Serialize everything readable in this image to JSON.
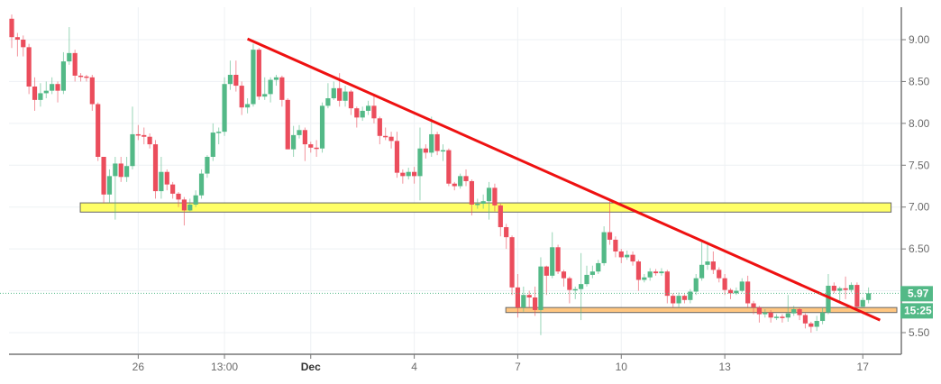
{
  "chart_data": {
    "type": "candlestick",
    "title": "",
    "xlabel": "",
    "ylabel": "",
    "ylim": [
      5.25,
      9.45
    ],
    "grid": true,
    "y_ticks": [
      "5.50",
      "6.00",
      "6.50",
      "7.00",
      "7.50",
      "8.00",
      "8.50",
      "9.00"
    ],
    "y_tick_labels_shown": [
      "5.50",
      "6.50",
      "7.00",
      "7.50",
      "8.00",
      "8.50",
      "9.00"
    ],
    "x_ticks": [
      {
        "label": "26",
        "candle": 22,
        "bold": false
      },
      {
        "label": "13:00",
        "candle": 37,
        "bold": false
      },
      {
        "label": "Dec",
        "candle": 52,
        "bold": true
      },
      {
        "label": "4",
        "candle": 70,
        "bold": false
      },
      {
        "label": "7",
        "candle": 88,
        "bold": false
      },
      {
        "label": "10",
        "candle": 106,
        "bold": false
      },
      {
        "label": "13",
        "candle": 124,
        "bold": false
      },
      {
        "label": "17",
        "candle": 148,
        "bold": false
      }
    ],
    "colors": {
      "up": "#53b987",
      "down": "#eb4d5c",
      "trendline": "#ee1111",
      "resistance_zone": "#ffff66",
      "support_zone": "#ffc680",
      "grid": "#eef1f4",
      "axis": "#777777"
    },
    "ohlc_order": [
      "open",
      "high",
      "low",
      "close"
    ],
    "candles": [
      [
        9.25,
        9.3,
        8.9,
        9.03
      ],
      [
        9.03,
        9.08,
        8.8,
        9.0
      ],
      [
        9.0,
        9.05,
        8.8,
        8.91
      ],
      [
        8.91,
        8.95,
        8.35,
        8.44
      ],
      [
        8.44,
        8.55,
        8.15,
        8.28
      ],
      [
        8.28,
        8.48,
        8.2,
        8.36
      ],
      [
        8.36,
        8.5,
        8.3,
        8.39
      ],
      [
        8.39,
        8.55,
        8.35,
        8.47
      ],
      [
        8.47,
        8.5,
        8.25,
        8.39
      ],
      [
        8.39,
        8.85,
        8.35,
        8.74
      ],
      [
        8.74,
        9.15,
        8.7,
        8.84
      ],
      [
        8.84,
        8.88,
        8.5,
        8.57
      ],
      [
        8.57,
        8.6,
        8.5,
        8.56
      ],
      [
        8.56,
        8.58,
        8.5,
        8.55
      ],
      [
        8.55,
        8.58,
        8.15,
        8.23
      ],
      [
        8.23,
        8.25,
        7.55,
        7.6
      ],
      [
        7.6,
        7.6,
        7.05,
        7.15
      ],
      [
        7.15,
        7.45,
        7.05,
        7.37
      ],
      [
        7.37,
        7.6,
        6.85,
        7.52
      ],
      [
        7.52,
        7.6,
        7.3,
        7.36
      ],
      [
        7.36,
        7.6,
        7.3,
        7.49
      ],
      [
        7.49,
        8.2,
        7.45,
        7.87
      ],
      [
        7.87,
        7.98,
        7.8,
        7.86
      ],
      [
        7.86,
        7.95,
        7.75,
        7.84
      ],
      [
        7.84,
        7.88,
        7.7,
        7.75
      ],
      [
        7.75,
        7.8,
        7.1,
        7.19
      ],
      [
        7.19,
        7.6,
        7.1,
        7.42
      ],
      [
        7.42,
        7.45,
        7.2,
        7.27
      ],
      [
        7.27,
        7.3,
        7.1,
        7.16
      ],
      [
        7.16,
        7.18,
        7.0,
        7.09
      ],
      [
        7.09,
        7.12,
        6.78,
        6.96
      ],
      [
        6.96,
        7.1,
        6.95,
        7.03
      ],
      [
        7.03,
        7.2,
        7.0,
        7.14
      ],
      [
        7.14,
        7.45,
        7.1,
        7.4
      ],
      [
        7.4,
        7.62,
        7.35,
        7.6
      ],
      [
        7.6,
        8.0,
        7.55,
        7.89
      ],
      [
        7.89,
        7.95,
        7.75,
        7.9
      ],
      [
        7.9,
        8.55,
        7.85,
        8.47
      ],
      [
        8.47,
        8.75,
        8.4,
        8.58
      ],
      [
        8.58,
        8.75,
        8.38,
        8.45
      ],
      [
        8.45,
        8.5,
        8.1,
        8.19
      ],
      [
        8.19,
        8.3,
        8.12,
        8.23
      ],
      [
        8.23,
        8.95,
        8.2,
        8.88
      ],
      [
        8.88,
        8.9,
        8.28,
        8.32
      ],
      [
        8.32,
        8.55,
        8.28,
        8.35
      ],
      [
        8.35,
        8.55,
        8.25,
        8.52
      ],
      [
        8.52,
        8.58,
        8.45,
        8.55
      ],
      [
        8.55,
        8.57,
        8.2,
        8.28
      ],
      [
        8.28,
        8.3,
        7.69,
        7.69
      ],
      [
        7.69,
        7.97,
        7.6,
        7.86
      ],
      [
        7.86,
        7.98,
        7.82,
        7.92
      ],
      [
        7.92,
        7.95,
        7.55,
        7.75
      ],
      [
        7.75,
        7.78,
        7.65,
        7.71
      ],
      [
        7.71,
        7.8,
        7.6,
        7.7
      ],
      [
        7.7,
        8.25,
        7.65,
        8.21
      ],
      [
        8.21,
        8.48,
        8.18,
        8.3
      ],
      [
        8.3,
        8.5,
        8.28,
        8.42
      ],
      [
        8.42,
        8.6,
        8.2,
        8.27
      ],
      [
        8.27,
        8.45,
        8.2,
        8.38
      ],
      [
        8.38,
        8.4,
        8.1,
        8.18
      ],
      [
        8.18,
        8.2,
        7.95,
        8.07
      ],
      [
        8.07,
        8.2,
        8.03,
        8.15
      ],
      [
        8.15,
        8.27,
        8.1,
        8.21
      ],
      [
        8.21,
        8.35,
        8.0,
        8.06
      ],
      [
        8.06,
        8.08,
        7.75,
        7.85
      ],
      [
        7.85,
        7.95,
        7.8,
        7.84
      ],
      [
        7.84,
        7.9,
        7.7,
        7.79
      ],
      [
        7.79,
        7.9,
        7.35,
        7.41
      ],
      [
        7.41,
        7.45,
        7.28,
        7.37
      ],
      [
        7.37,
        7.47,
        7.33,
        7.42
      ],
      [
        7.42,
        7.48,
        7.28,
        7.37
      ],
      [
        7.37,
        7.95,
        7.08,
        7.7
      ],
      [
        7.7,
        7.75,
        7.58,
        7.65
      ],
      [
        7.65,
        8.08,
        7.6,
        7.87
      ],
      [
        7.87,
        7.9,
        7.62,
        7.67
      ],
      [
        7.67,
        7.75,
        7.55,
        7.68
      ],
      [
        7.68,
        7.7,
        7.25,
        7.28
      ],
      [
        7.28,
        7.3,
        7.2,
        7.25
      ],
      [
        7.25,
        7.4,
        7.22,
        7.37
      ],
      [
        7.37,
        7.45,
        7.25,
        7.31
      ],
      [
        7.31,
        7.33,
        6.9,
        7.03
      ],
      [
        7.03,
        7.1,
        6.98,
        7.04
      ],
      [
        7.04,
        7.15,
        6.98,
        7.07
      ],
      [
        7.07,
        7.3,
        6.85,
        7.23
      ],
      [
        7.23,
        7.28,
        6.95,
        7.02
      ],
      [
        7.02,
        7.04,
        6.65,
        6.76
      ],
      [
        6.76,
        6.8,
        6.5,
        6.64
      ],
      [
        6.64,
        6.66,
        5.95,
        6.04
      ],
      [
        6.04,
        6.2,
        5.68,
        5.8
      ],
      [
        5.8,
        6.05,
        5.75,
        5.95
      ],
      [
        5.95,
        6.0,
        5.8,
        5.92
      ],
      [
        5.92,
        6.05,
        5.7,
        5.77
      ],
      [
        5.77,
        6.4,
        5.47,
        6.29
      ],
      [
        6.29,
        6.3,
        5.95,
        6.18
      ],
      [
        6.18,
        6.7,
        6.15,
        6.52
      ],
      [
        6.52,
        6.55,
        6.2,
        6.23
      ],
      [
        6.23,
        6.25,
        6.05,
        6.15
      ],
      [
        6.15,
        6.17,
        5.85,
        6.01
      ],
      [
        6.01,
        6.05,
        5.9,
        6.02
      ],
      [
        6.02,
        6.45,
        5.65,
        6.08
      ],
      [
        6.08,
        6.3,
        6.05,
        6.19
      ],
      [
        6.19,
        6.3,
        6.15,
        6.23
      ],
      [
        6.23,
        6.37,
        6.2,
        6.33
      ],
      [
        6.33,
        6.77,
        6.3,
        6.7
      ],
      [
        6.7,
        7.07,
        6.55,
        6.61
      ],
      [
        6.61,
        6.65,
        6.4,
        6.47
      ],
      [
        6.47,
        6.5,
        6.33,
        6.4
      ],
      [
        6.4,
        6.48,
        6.37,
        6.43
      ],
      [
        6.43,
        6.47,
        6.3,
        6.35
      ],
      [
        6.35,
        6.37,
        6.0,
        6.13
      ],
      [
        6.13,
        6.2,
        6.1,
        6.16
      ],
      [
        6.16,
        6.27,
        6.12,
        6.23
      ],
      [
        6.23,
        6.26,
        6.18,
        6.21
      ],
      [
        6.21,
        6.27,
        6.18,
        6.23
      ],
      [
        6.23,
        6.25,
        5.85,
        5.94
      ],
      [
        5.94,
        5.97,
        5.8,
        5.85
      ],
      [
        5.85,
        5.98,
        5.8,
        5.94
      ],
      [
        5.94,
        5.96,
        5.85,
        5.89
      ],
      [
        5.89,
        6.02,
        5.85,
        5.99
      ],
      [
        5.99,
        6.2,
        5.95,
        6.15
      ],
      [
        6.15,
        6.58,
        6.12,
        6.31
      ],
      [
        6.31,
        6.55,
        6.25,
        6.35
      ],
      [
        6.35,
        6.47,
        6.2,
        6.25
      ],
      [
        6.25,
        6.28,
        6.1,
        6.15
      ],
      [
        6.15,
        6.2,
        5.95,
        6.01
      ],
      [
        6.01,
        6.03,
        5.9,
        5.97
      ],
      [
        5.97,
        6.04,
        5.95,
        6.0
      ],
      [
        6.0,
        6.15,
        5.98,
        6.11
      ],
      [
        6.11,
        6.18,
        5.8,
        5.85
      ],
      [
        5.85,
        5.88,
        5.72,
        5.8
      ],
      [
        5.8,
        5.82,
        5.62,
        5.72
      ],
      [
        5.72,
        5.78,
        5.68,
        5.74
      ],
      [
        5.74,
        5.77,
        5.62,
        5.68
      ],
      [
        5.68,
        5.72,
        5.65,
        5.69
      ],
      [
        5.69,
        5.72,
        5.62,
        5.68
      ],
      [
        5.68,
        5.95,
        5.63,
        5.73
      ],
      [
        5.73,
        5.82,
        5.7,
        5.78
      ],
      [
        5.78,
        5.8,
        5.65,
        5.71
      ],
      [
        5.71,
        5.73,
        5.55,
        5.61
      ],
      [
        5.61,
        5.63,
        5.5,
        5.57
      ],
      [
        5.57,
        5.7,
        5.52,
        5.64
      ],
      [
        5.64,
        5.8,
        5.6,
        5.74
      ],
      [
        5.74,
        6.2,
        5.72,
        6.06
      ],
      [
        6.06,
        6.1,
        5.97,
        6.0
      ],
      [
        6.0,
        6.05,
        5.85,
        6.03
      ],
      [
        6.03,
        6.17,
        5.9,
        6.01
      ],
      [
        6.01,
        6.1,
        5.98,
        6.07
      ],
      [
        6.07,
        6.1,
        5.78,
        5.81
      ],
      [
        5.81,
        5.92,
        5.8,
        5.89
      ],
      [
        5.89,
        6.04,
        5.85,
        5.97
      ]
    ],
    "annotations": {
      "resistance_zone": {
        "from_candle": 12,
        "to_candle": 153,
        "low": 6.94,
        "high": 7.05
      },
      "support_zone": {
        "from_candle": 86,
        "to_candle": 154,
        "low": 5.74,
        "high": 5.8
      },
      "trendline": {
        "start": {
          "candle": 41,
          "price": 9.01
        },
        "end": {
          "candle": 151,
          "price": 5.65
        }
      }
    },
    "current_price": {
      "value": "5.97",
      "countdown": "15:25"
    }
  }
}
